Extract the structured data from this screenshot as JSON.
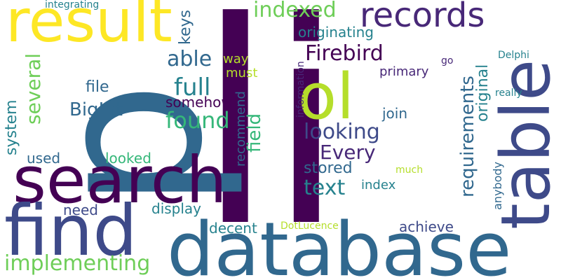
{
  "words": {
    "li": "li",
    "database": "database",
    "p": "p",
    "search": "search",
    "table": "table",
    "find": "find",
    "result": "result",
    "ol": "ol",
    "records": "records",
    "firebird": "Firebird",
    "looking": "looking",
    "implementing": "implementing",
    "every": "Every",
    "found": "found",
    "full": "full",
    "text": "text",
    "several": "several",
    "indexed": "indexed",
    "able": "able",
    "bigint": "BigInt",
    "requirements": "requirements",
    "field": "field",
    "originating": "originating",
    "stored": "stored",
    "system": "system",
    "file": "file",
    "keys": "keys",
    "original": "original",
    "join": "join",
    "achieve": "achieve",
    "display": "display",
    "decent": "decent",
    "need": "need",
    "used": "used",
    "looked": "looked",
    "somehow": "somehow",
    "recommend": "recommend",
    "must": "must",
    "way": "way",
    "primary": "primary",
    "index": "index",
    "anybody": "anybody",
    "information": "information",
    "integrating": "integrating",
    "delphi": "Delphi",
    "really": "really",
    "go": "go",
    "much": "much",
    "dotlucence": "DotLucence"
  },
  "colors": {
    "background": "#ffffff",
    "dark_purple": "#440154",
    "indigo": "#482878",
    "blue_purple": "#3e4a89",
    "slate_blue": "#31688e",
    "teal": "#26828e",
    "sea_green": "#1f9e89",
    "green": "#35b779",
    "light_green": "#6ece58",
    "lime": "#b5de2b",
    "yellow": "#fde725"
  }
}
